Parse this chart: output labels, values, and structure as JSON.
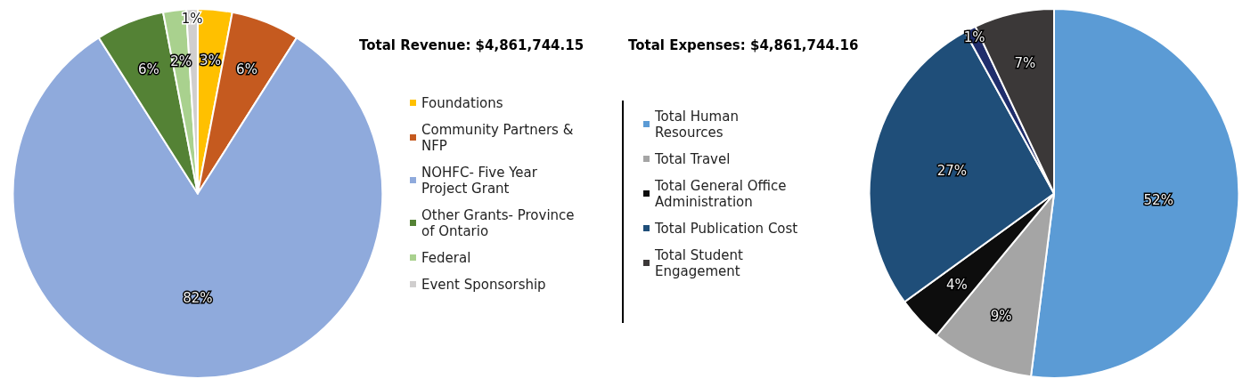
{
  "chart_data": [
    {
      "type": "pie",
      "title": "Total Revenue: $4,861,744.15",
      "categories": [
        "Foundations",
        "Community Partners & NFP",
        "NOHFC- Five Year Project Grant",
        "Other Grants- Province of Ontario",
        "Federal",
        "Event Sponsorship"
      ],
      "values": [
        3,
        6,
        82,
        6,
        2,
        1
      ],
      "colors": [
        "#ffc000",
        "#c55a1f",
        "#8faadc",
        "#548235",
        "#a9d18e",
        "#d0cece"
      ],
      "value_labels": [
        "3%",
        "6%",
        "82%",
        "6%",
        "2%",
        "1%"
      ],
      "legend": "right"
    },
    {
      "type": "pie",
      "title": "Total Expenses: $4,861,744.16",
      "categories": [
        "Total Human Resources",
        "Total Travel",
        "Total General Office Administration",
        "Total Publication Cost",
        null,
        "Total Student Engagement"
      ],
      "values": [
        52,
        9,
        4,
        27,
        1,
        7
      ],
      "colors": [
        "#5b9bd5",
        "#a5a5a5",
        "#0d0d0d",
        "#1f4e79",
        "#1f2d6b",
        "#3b3838"
      ],
      "value_labels": [
        "52%",
        "9%",
        "4%",
        "27%",
        "1%",
        "7%"
      ],
      "legend": "left"
    }
  ]
}
